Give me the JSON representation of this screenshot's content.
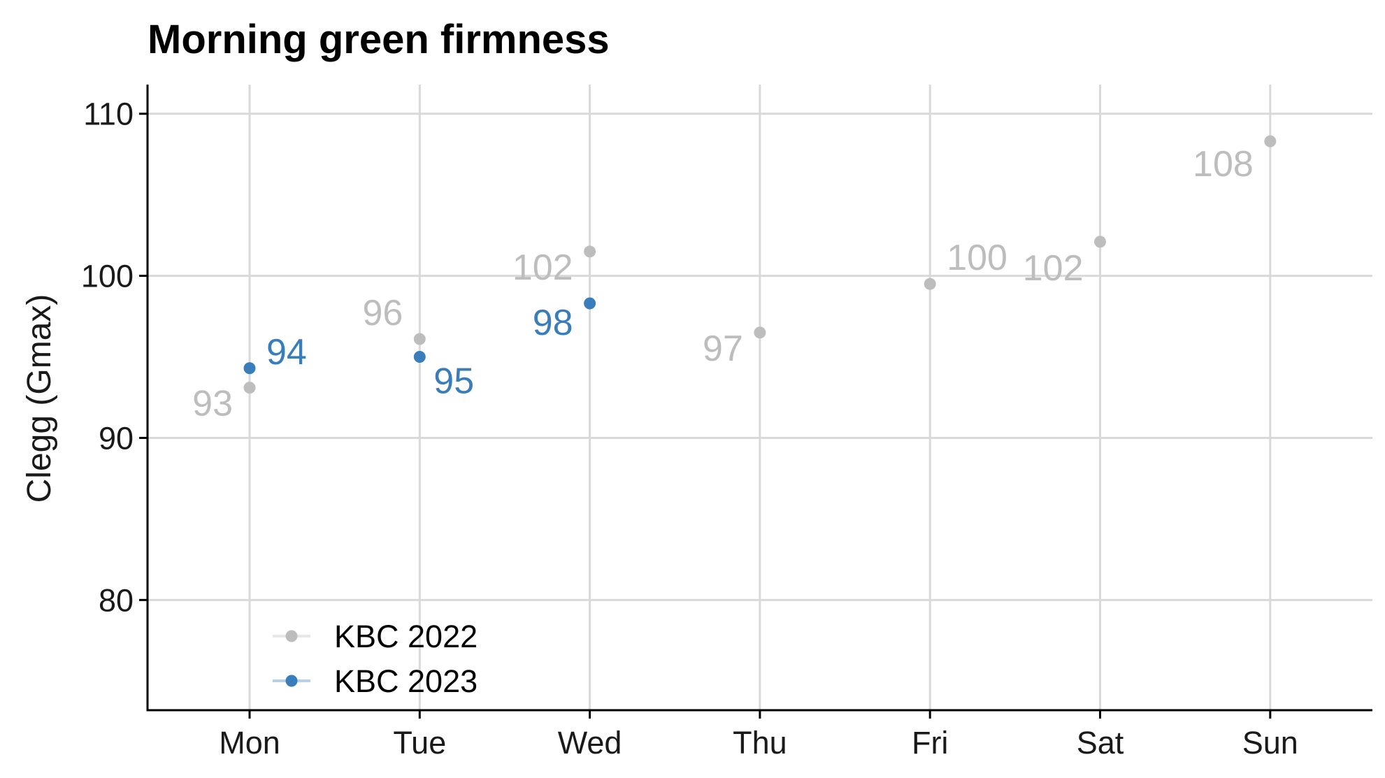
{
  "chart_data": {
    "type": "scatter",
    "title": "Morning green firmness",
    "xlabel": "",
    "ylabel": "Clegg (Gmax)",
    "categories": [
      "Mon",
      "Tue",
      "Wed",
      "Thu",
      "Fri",
      "Sat",
      "Sun"
    ],
    "ylim": [
      73.2,
      111.8
    ],
    "yticks": [
      80,
      90,
      100,
      110
    ],
    "grid": true,
    "legend_position": "bottom-left",
    "series": [
      {
        "name": "KBC 2022",
        "color": "#bdbdbd",
        "values": [
          93.1,
          96.1,
          101.5,
          96.5,
          99.5,
          102.1,
          108.3
        ],
        "labels": [
          "93",
          "96",
          "102",
          "97",
          "100",
          "102",
          "108"
        ],
        "label_side": [
          "left",
          "left",
          "left",
          "left",
          "right",
          "left",
          "left"
        ]
      },
      {
        "name": "KBC 2023",
        "color": "#3a7dbb",
        "values": [
          94.3,
          95.0,
          98.3,
          null,
          null,
          null,
          null
        ],
        "labels": [
          "94",
          "95",
          "98",
          null,
          null,
          null,
          null
        ],
        "label_side": [
          "right",
          "right",
          "left",
          null,
          null,
          null,
          null
        ]
      }
    ]
  }
}
